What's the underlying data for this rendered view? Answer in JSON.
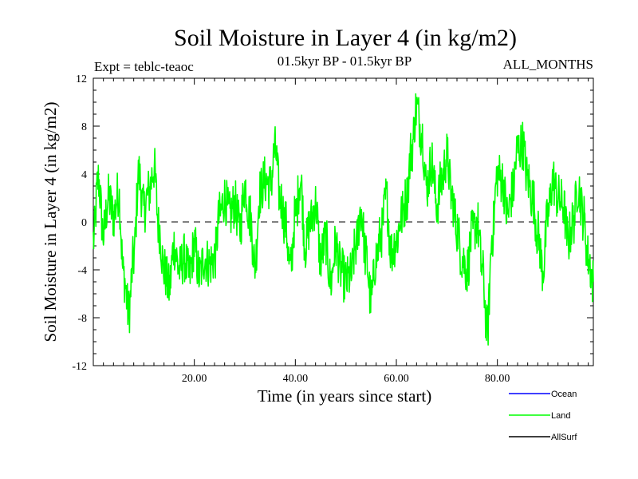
{
  "chart_data": {
    "type": "line",
    "title": "Soil Moisture in Layer 4 (in kg/m2)",
    "subtitle_left": "Expt = teblc-teaoc",
    "subtitle_center": "01.5kyr BP - 01.5kyr BP",
    "subtitle_right": "ALL_MONTHS",
    "xlabel": "Time (in years since start)",
    "ylabel": "Soil Moisture in Layer 4 (in kg/m2)",
    "xlim": [
      0,
      99
    ],
    "ylim": [
      -12,
      12
    ],
    "xticks": [
      20,
      40,
      60,
      80
    ],
    "xtick_labels": [
      "20.00",
      "40.00",
      "60.00",
      "80.00"
    ],
    "yticks": [
      -12,
      -8,
      -4,
      0,
      4,
      8,
      12
    ],
    "ytick_labels": [
      "-12",
      "-8",
      "-4",
      "0",
      "4",
      "8",
      "12"
    ],
    "reference_line": 0,
    "legend": [
      {
        "name": "Ocean",
        "color": "#0000ff"
      },
      {
        "name": "Land",
        "color": "#00ff00"
      },
      {
        "name": "AllSurf",
        "color": "#000000"
      }
    ],
    "series": [
      {
        "name": "Land",
        "color": "#00ff00",
        "x": [
          0,
          1,
          2,
          3,
          4,
          5,
          6,
          7,
          8,
          9,
          10,
          11,
          12,
          13,
          14,
          15,
          16,
          17,
          18,
          19,
          20,
          21,
          22,
          23,
          24,
          25,
          26,
          27,
          28,
          29,
          30,
          31,
          32,
          33,
          34,
          35,
          36,
          37,
          38,
          39,
          40,
          41,
          42,
          43,
          44,
          45,
          46,
          47,
          48,
          49,
          50,
          51,
          52,
          53,
          54,
          55,
          56,
          57,
          58,
          59,
          60,
          61,
          62,
          63,
          64,
          65,
          66,
          67,
          68,
          69,
          70,
          71,
          72,
          73,
          74,
          75,
          76,
          77,
          78,
          79,
          80,
          81,
          82,
          83,
          84,
          85,
          86,
          87,
          88,
          89,
          90,
          91,
          92,
          93,
          94,
          95,
          96,
          97,
          98,
          99
        ],
        "values": [
          -1.5,
          3.5,
          -1.0,
          2.0,
          0.5,
          2.5,
          -4.5,
          -7.5,
          -3.0,
          4.0,
          1.0,
          2.5,
          4.5,
          -0.5,
          -4.0,
          -5.5,
          -2.0,
          -4.0,
          -3.0,
          -4.5,
          -2.0,
          -4.5,
          -3.0,
          -3.5,
          -3.0,
          0.5,
          2.0,
          0.5,
          1.5,
          -0.5,
          3.0,
          0.5,
          -3.5,
          2.5,
          3.5,
          3.0,
          6.0,
          2.0,
          0.0,
          -4.0,
          0.5,
          3.5,
          -2.0,
          0.0,
          1.5,
          -3.0,
          -1.5,
          -5.0,
          -2.0,
          -4.0,
          -5.0,
          -4.5,
          -2.0,
          1.0,
          -3.0,
          -6.5,
          -3.0,
          -1.0,
          2.0,
          -2.5,
          -1.5,
          0.5,
          2.0,
          6.0,
          9.5,
          7.5,
          3.0,
          5.0,
          1.5,
          3.5,
          5.5,
          2.0,
          -0.5,
          -3.0,
          -4.0,
          -1.0,
          0.0,
          -4.0,
          -9.0,
          -1.0,
          4.0,
          3.5,
          0.5,
          2.5,
          6.0,
          6.5,
          3.5,
          2.0,
          -1.0,
          -4.0,
          0.5,
          3.5,
          2.0,
          1.5,
          -1.5,
          0.0,
          3.0,
          0.5,
          -3.0,
          -5.0
        ]
      }
    ]
  }
}
